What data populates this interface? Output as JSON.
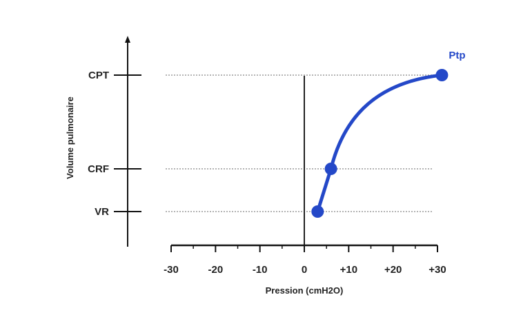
{
  "chart_data": {
    "type": "line",
    "xlabel": "Pression (cmH2O)",
    "ylabel": "Volume pulmonaire",
    "x_ticks": [
      -30,
      -20,
      -10,
      0,
      10,
      20,
      30
    ],
    "x_tick_labels": [
      "-30",
      "-20",
      "-10",
      "0",
      "+10",
      "+20",
      "+30"
    ],
    "xlim": [
      -30,
      30
    ],
    "y_levels": [
      {
        "label": "CPT"
      },
      {
        "label": "CRF"
      },
      {
        "label": "VR"
      }
    ],
    "series": [
      {
        "name": "Ptp",
        "color": "#2448c8",
        "points": [
          {
            "x": 3,
            "level": "VR"
          },
          {
            "x": 6,
            "level": "CRF"
          },
          {
            "x": 31,
            "level": "CPT"
          }
        ]
      }
    ],
    "grid": "dotted horizontal lines at CPT, CRF and VR"
  }
}
